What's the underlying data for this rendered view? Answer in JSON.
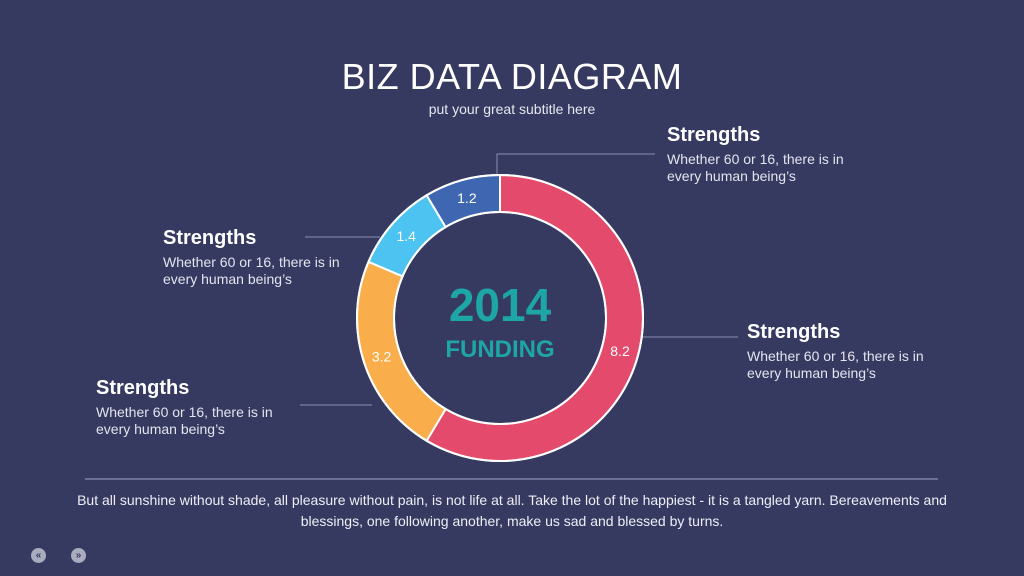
{
  "header": {
    "title": "BIZ DATA DIAGRAM",
    "subtitle": "put your great subtitle here"
  },
  "center": {
    "year": "2014",
    "label": "FUNDING"
  },
  "callouts": [
    {
      "heading": "Strengths",
      "text": "Whether 60 or 16, there is in every human being’s"
    },
    {
      "heading": "Strengths",
      "text": "Whether 60 or 16, there is in every human being’s"
    },
    {
      "heading": "Strengths",
      "text": "Whether 60 or 16, there is in every human being’s"
    },
    {
      "heading": "Strengths",
      "text": "Whether 60 or 16, there is in every human being’s"
    }
  ],
  "footer": {
    "text": "But all sunshine without shade, all pleasure without pain, is not life at all. Take the lot of the happiest - it is a tangled yarn. Bereavements and blessings, one following another, make us sad and blessed by turns."
  },
  "nav": {
    "prev_icon": "«",
    "next_icon": "»"
  },
  "chart_data": {
    "type": "pie",
    "categories": [
      "8.2",
      "3.2",
      "1.4",
      "1.2"
    ],
    "values": [
      8.2,
      3.2,
      1.4,
      1.2
    ],
    "labels": [
      "8.2",
      "3.2",
      "1.4",
      "1.2"
    ],
    "colors": [
      "#e44a6b",
      "#f9ae4b",
      "#4cc3f1",
      "#3f66b0"
    ],
    "title": "BIZ DATA DIAGRAM",
    "subtitle": "put your great subtitle here"
  }
}
